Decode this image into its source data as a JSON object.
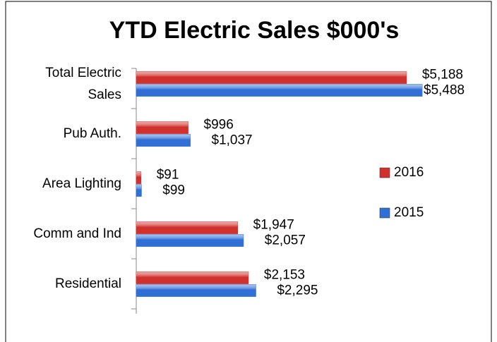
{
  "chart_data": {
    "type": "hbar",
    "title": "YTD Electric Sales $000's",
    "categories": [
      "Total Electric Sales",
      "Pub Auth.",
      "Area Lighting",
      "Comm and Ind",
      "Residential"
    ],
    "series": [
      {
        "name": "2016",
        "color": "#d0312d",
        "values": [
          5188,
          996,
          91,
          1947,
          2153
        ],
        "value_labels": [
          "$5,188",
          "$996",
          "$91",
          "$1,947",
          "$2,153"
        ]
      },
      {
        "name": "2015",
        "color": "#2f6fd6",
        "values": [
          5488,
          1037,
          99,
          2057,
          2295
        ],
        "value_labels": [
          "$5,488",
          "$1,037",
          "$99",
          "$2,057",
          "$2,295"
        ]
      }
    ],
    "legend": "right"
  }
}
